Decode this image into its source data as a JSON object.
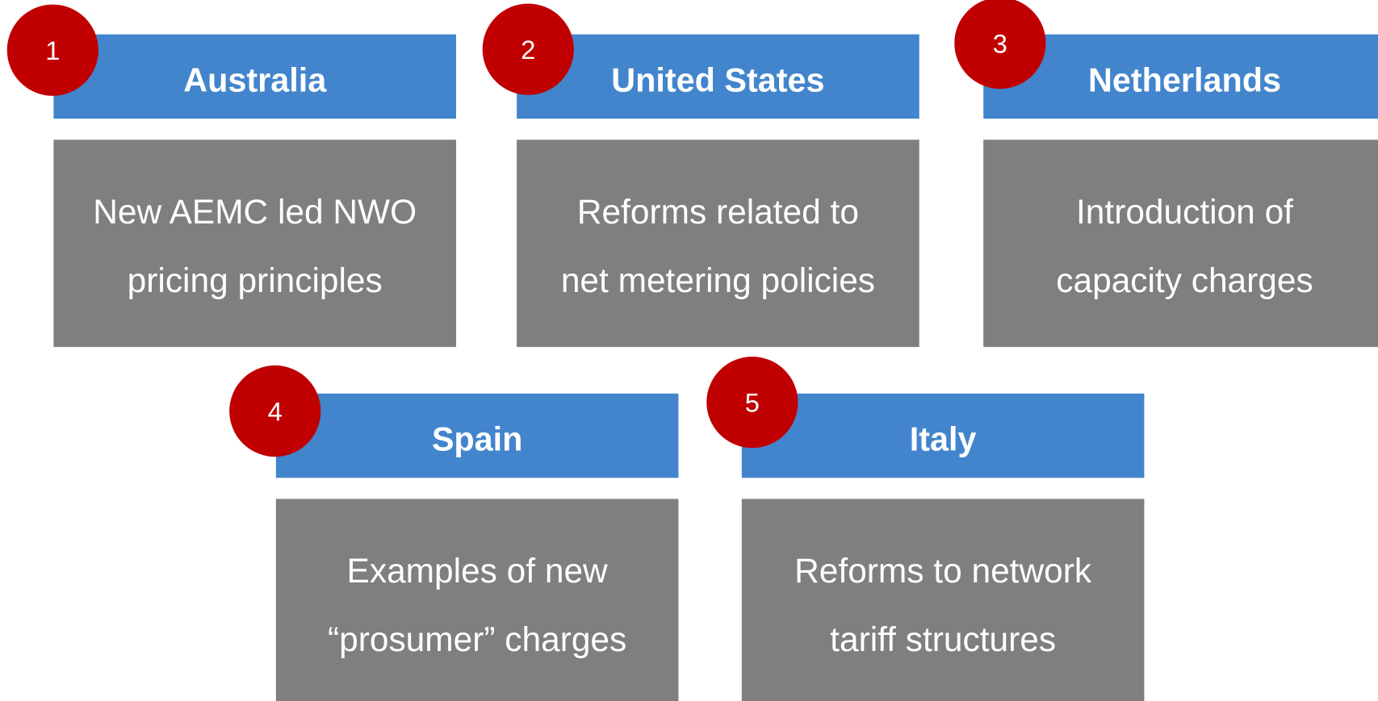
{
  "items": [
    {
      "number": "1",
      "country": "Australia",
      "description": [
        "New AEMC led NWO",
        "pricing principles"
      ]
    },
    {
      "number": "2",
      "country": "United States",
      "description": [
        "Reforms related to",
        "net metering policies"
      ]
    },
    {
      "number": "3",
      "country": "Netherlands",
      "description": [
        "Introduction of",
        "capacity charges"
      ]
    },
    {
      "number": "4",
      "country": "Spain",
      "description": [
        "Examples of new",
        "“prosumer” charges"
      ]
    },
    {
      "number": "5",
      "country": "Italy",
      "description": [
        "Reforms to network",
        "tariff structures"
      ]
    }
  ]
}
